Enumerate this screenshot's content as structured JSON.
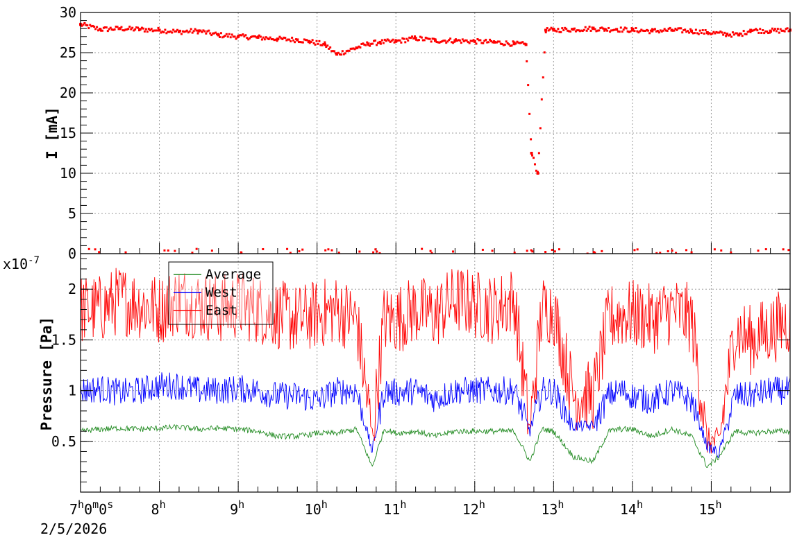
{
  "chart_data": [
    {
      "type": "scatter",
      "ylabel": "I [mA]",
      "ylim": [
        0,
        30
      ],
      "yticks": [
        "0",
        "5",
        "10",
        "15",
        "20",
        "25",
        "30"
      ],
      "grid": true,
      "series": [
        {
          "color": "#ff0000",
          "x": [
            7.0,
            7.25,
            7.5,
            7.75,
            8.0,
            8.25,
            8.5,
            8.75,
            9.0,
            9.25,
            9.5,
            9.75,
            9.9,
            10.1,
            10.25,
            10.5,
            10.65,
            10.8,
            11.0,
            11.25,
            11.5,
            11.75,
            12.0,
            12.25,
            12.5,
            12.65,
            12.72,
            12.8,
            12.9,
            13.0,
            13.25,
            13.5,
            13.65,
            13.8,
            14.0,
            14.25,
            14.5,
            14.75,
            14.95,
            15.2,
            15.35,
            15.5,
            15.75,
            16.0
          ],
          "y": [
            28.5,
            27.9,
            28.0,
            27.9,
            27.8,
            27.6,
            27.7,
            27.2,
            27.0,
            26.9,
            26.7,
            26.6,
            26.4,
            26.0,
            24.8,
            25.6,
            26.1,
            26.3,
            26.4,
            26.8,
            26.5,
            26.5,
            26.4,
            26.3,
            26.1,
            26.0,
            12.5,
            10.0,
            27.8,
            27.8,
            27.9,
            28.0,
            27.9,
            27.9,
            27.8,
            27.7,
            27.8,
            27.7,
            27.5,
            27.3,
            27.2,
            27.8,
            27.7,
            27.8
          ]
        }
      ]
    },
    {
      "type": "line",
      "ylabel": "Pressure [Pa]",
      "exponent_label": "x10",
      "exponent_sup": "-7",
      "ylim": [
        0.0,
        2.35
      ],
      "yticks": [
        "0.5",
        "1",
        "1.5",
        "2"
      ],
      "grid": true,
      "legend_position": "top-left",
      "xtick_first": [
        "7",
        "h",
        "0",
        "m",
        "0",
        "s"
      ],
      "xtick_labels": [
        {
          "num": "8",
          "unit": "h"
        },
        {
          "num": "9",
          "unit": "h"
        },
        {
          "num": "10",
          "unit": "h"
        },
        {
          "num": "11",
          "unit": "h"
        },
        {
          "num": "12",
          "unit": "h"
        },
        {
          "num": "13",
          "unit": "h"
        },
        {
          "num": "14",
          "unit": "h"
        },
        {
          "num": "15",
          "unit": "h"
        }
      ],
      "date_label": "2/5/2026",
      "xlim": [
        7.0,
        16.0
      ],
      "x": [
        7.0,
        7.25,
        7.5,
        7.75,
        8.0,
        8.25,
        8.5,
        8.75,
        9.0,
        9.25,
        9.5,
        9.75,
        10.0,
        10.25,
        10.5,
        10.7,
        10.85,
        11.0,
        11.25,
        11.5,
        11.75,
        12.0,
        12.25,
        12.5,
        12.7,
        12.85,
        13.0,
        13.25,
        13.5,
        13.7,
        13.85,
        14.0,
        14.25,
        14.5,
        14.75,
        14.95,
        15.1,
        15.3,
        15.5,
        15.75,
        16.0
      ],
      "series": [
        {
          "name": "Average",
          "color": "#228b22",
          "values": [
            0.6,
            0.62,
            0.63,
            0.62,
            0.63,
            0.64,
            0.62,
            0.63,
            0.62,
            0.6,
            0.55,
            0.55,
            0.58,
            0.58,
            0.62,
            0.25,
            0.62,
            0.58,
            0.6,
            0.55,
            0.6,
            0.6,
            0.6,
            0.6,
            0.3,
            0.62,
            0.6,
            0.35,
            0.3,
            0.6,
            0.62,
            0.62,
            0.55,
            0.62,
            0.55,
            0.25,
            0.35,
            0.6,
            0.58,
            0.6,
            0.6
          ]
        },
        {
          "name": "West",
          "color": "#0000ff",
          "values": [
            1.0,
            1.02,
            0.98,
            1.0,
            1.05,
            1.05,
            1.0,
            1.0,
            1.02,
            1.0,
            0.95,
            0.95,
            0.9,
            1.0,
            1.0,
            0.4,
            1.0,
            0.98,
            1.0,
            0.92,
            1.0,
            1.0,
            1.0,
            1.0,
            0.6,
            1.0,
            1.0,
            0.65,
            0.65,
            0.95,
            1.0,
            0.95,
            0.9,
            1.0,
            0.9,
            0.45,
            0.38,
            0.95,
            0.95,
            1.0,
            1.0
          ]
        },
        {
          "name": "East",
          "color": "#ff0000",
          "values": [
            1.8,
            1.8,
            1.9,
            1.85,
            1.8,
            1.9,
            1.85,
            1.8,
            1.85,
            1.8,
            1.75,
            1.7,
            1.75,
            1.8,
            1.7,
            0.55,
            1.7,
            1.7,
            1.8,
            1.75,
            1.9,
            1.85,
            1.8,
            1.9,
            0.6,
            1.8,
            1.8,
            0.95,
            0.95,
            1.7,
            1.75,
            1.75,
            1.7,
            1.8,
            1.7,
            0.5,
            0.5,
            1.6,
            1.5,
            1.6,
            1.7
          ]
        }
      ]
    }
  ]
}
